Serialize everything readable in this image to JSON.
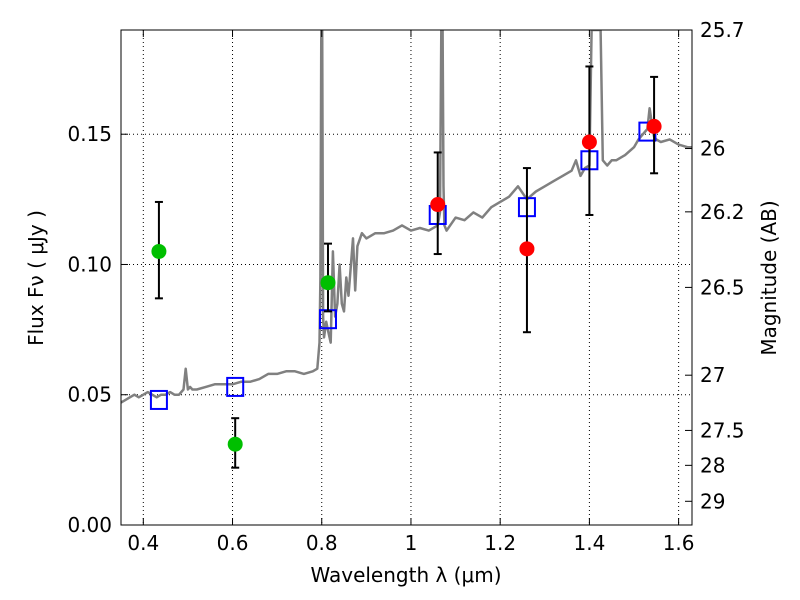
{
  "chart_data": {
    "type": "line",
    "xlabel": "Wavelength  λ (μm)",
    "ylabel": "Flux  Fν  ( μJy )",
    "y2label": "Magnitude (AB)",
    "xlim": [
      0.35,
      1.63
    ],
    "ylim": [
      0.0,
      0.19
    ],
    "grid": true,
    "x_ticks": [
      0.4,
      0.6,
      0.8,
      1.0,
      1.2,
      1.4,
      1.6
    ],
    "x_tick_labels": [
      "0.4",
      "0.6",
      "0.8",
      "1",
      "1.2",
      "1.4",
      "1.6"
    ],
    "y_ticks": [
      0.0,
      0.05,
      0.1,
      0.15
    ],
    "y_tick_labels": [
      "0.00",
      "0.05",
      "0.10",
      "0.15"
    ],
    "y2_ticks": [
      {
        "label": "25.7",
        "flux": 0.19
      },
      {
        "label": "26",
        "flux": 0.1445
      },
      {
        "label": "26.2",
        "flux": 0.1202
      },
      {
        "label": "26.5",
        "flux": 0.0912
      },
      {
        "label": "27",
        "flux": 0.0575
      },
      {
        "label": "27.5",
        "flux": 0.0363
      },
      {
        "label": "28",
        "flux": 0.0229
      },
      {
        "label": "29",
        "flux": 0.0091
      }
    ],
    "series": [
      {
        "kind": "model_spectrum",
        "color": "#808080",
        "x": [
          0.35,
          0.36,
          0.37,
          0.38,
          0.39,
          0.4,
          0.41,
          0.42,
          0.43,
          0.44,
          0.45,
          0.46,
          0.47,
          0.48,
          0.49,
          0.495,
          0.5,
          0.505,
          0.51,
          0.52,
          0.54,
          0.56,
          0.58,
          0.6,
          0.62,
          0.64,
          0.66,
          0.68,
          0.7,
          0.72,
          0.74,
          0.76,
          0.78,
          0.79,
          0.795,
          0.797,
          0.799,
          0.801,
          0.803,
          0.805,
          0.81,
          0.815,
          0.82,
          0.825,
          0.83,
          0.835,
          0.84,
          0.845,
          0.85,
          0.855,
          0.86,
          0.87,
          0.875,
          0.88,
          0.89,
          0.9,
          0.92,
          0.94,
          0.96,
          0.98,
          1.0,
          1.02,
          1.04,
          1.06,
          1.065,
          1.068,
          1.071,
          1.073,
          1.075,
          1.08,
          1.1,
          1.12,
          1.14,
          1.16,
          1.18,
          1.2,
          1.22,
          1.24,
          1.26,
          1.28,
          1.3,
          1.32,
          1.34,
          1.36,
          1.37,
          1.375,
          1.38,
          1.39,
          1.4,
          1.405,
          1.41,
          1.42,
          1.425,
          1.43,
          1.44,
          1.45,
          1.46,
          1.47,
          1.48,
          1.5,
          1.51,
          1.52,
          1.53,
          1.535,
          1.54,
          1.545,
          1.55,
          1.56,
          1.58,
          1.6,
          1.62,
          1.63
        ],
        "y": [
          0.047,
          0.048,
          0.049,
          0.05,
          0.049,
          0.05,
          0.051,
          0.05,
          0.049,
          0.05,
          0.05,
          0.051,
          0.05,
          0.05,
          0.052,
          0.06,
          0.052,
          0.053,
          0.052,
          0.052,
          0.053,
          0.054,
          0.054,
          0.054,
          0.055,
          0.055,
          0.056,
          0.058,
          0.058,
          0.059,
          0.059,
          0.058,
          0.059,
          0.06,
          0.07,
          0.095,
          0.19,
          0.19,
          0.08,
          0.072,
          0.078,
          0.074,
          0.07,
          0.105,
          0.08,
          0.085,
          0.1,
          0.085,
          0.082,
          0.095,
          0.088,
          0.11,
          0.09,
          0.107,
          0.112,
          0.11,
          0.112,
          0.112,
          0.113,
          0.115,
          0.113,
          0.114,
          0.113,
          0.115,
          0.12,
          0.19,
          0.19,
          0.13,
          0.115,
          0.113,
          0.118,
          0.117,
          0.12,
          0.118,
          0.122,
          0.124,
          0.126,
          0.13,
          0.125,
          0.128,
          0.13,
          0.132,
          0.134,
          0.136,
          0.14,
          0.137,
          0.134,
          0.137,
          0.138,
          0.19,
          0.19,
          0.19,
          0.19,
          0.14,
          0.138,
          0.14,
          0.14,
          0.141,
          0.142,
          0.145,
          0.148,
          0.15,
          0.152,
          0.16,
          0.154,
          0.149,
          0.148,
          0.147,
          0.148,
          0.146,
          0.145,
          0.145
        ]
      },
      {
        "kind": "model_photometry",
        "color": "#0000ff",
        "marker": "open-square",
        "x": [
          0.435,
          0.606,
          0.814,
          1.06,
          1.26,
          1.4,
          1.53
        ],
        "y": [
          0.048,
          0.053,
          0.079,
          0.119,
          0.122,
          0.14,
          0.151
        ]
      },
      {
        "kind": "observed_optical",
        "color": "#00bf00",
        "marker": "filled-circle",
        "x": [
          0.435,
          0.606,
          0.814
        ],
        "y": [
          0.105,
          0.031,
          0.093
        ],
        "err_low": [
          0.087,
          0.022,
          0.082
        ],
        "err_high": [
          0.124,
          0.041,
          0.108
        ]
      },
      {
        "kind": "observed_nir",
        "color": "#ff0000",
        "marker": "filled-circle",
        "x": [
          1.06,
          1.26,
          1.4,
          1.545
        ],
        "y": [
          0.123,
          0.106,
          0.147,
          0.153
        ],
        "err_low": [
          0.104,
          0.074,
          0.119,
          0.135
        ],
        "err_high": [
          0.143,
          0.137,
          0.176,
          0.172
        ]
      }
    ]
  }
}
